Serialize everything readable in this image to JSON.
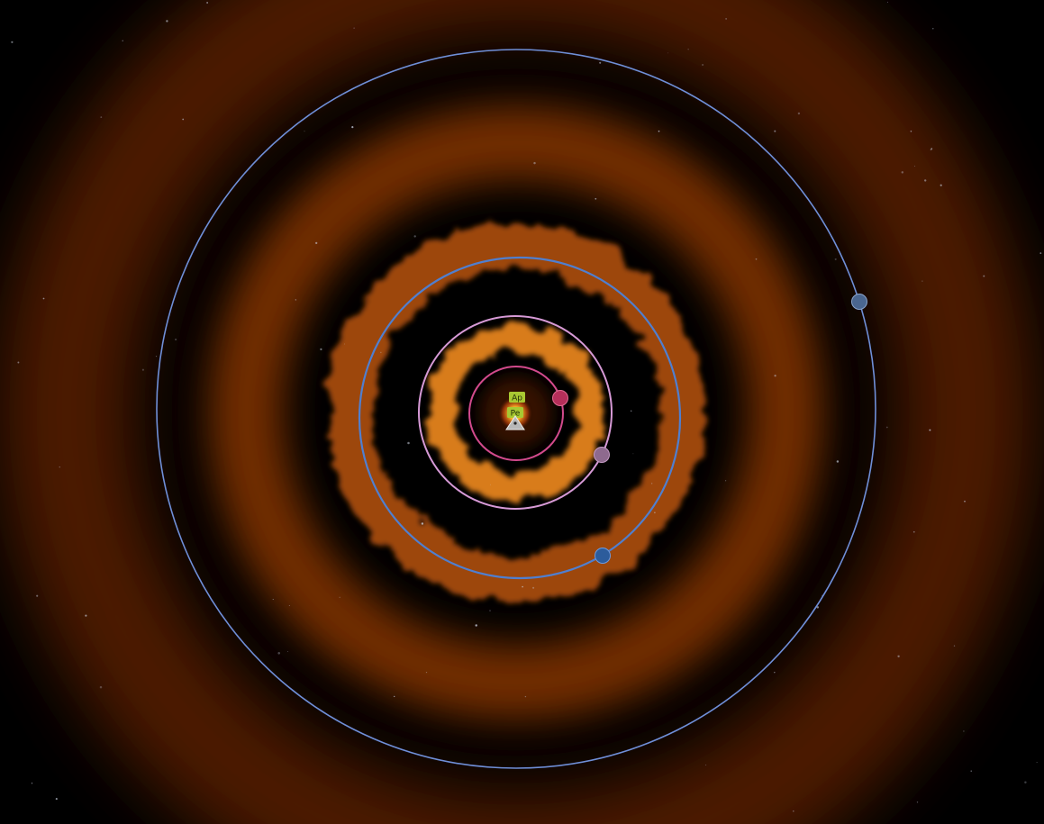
{
  "map": {
    "background_color": "#000000",
    "nebula_color": "#ff6a00",
    "star_color": "#ffd34a"
  },
  "orbits": [
    {
      "id": "orbit-inner-pink",
      "color": "#d24a8c"
    },
    {
      "id": "orbit-lilac",
      "color": "#d79ad6"
    },
    {
      "id": "orbit-blue",
      "color": "#4f7fd0"
    },
    {
      "id": "orbit-outer-blue",
      "color": "#6f8fd8"
    }
  ],
  "bodies": [
    {
      "id": "planet-crimson",
      "color": "#b52f5a"
    },
    {
      "id": "planet-mauve",
      "color": "#8e6a8e"
    },
    {
      "id": "planet-blue",
      "color": "#2c5c9c"
    },
    {
      "id": "planet-slate",
      "color": "#4a6690"
    }
  ],
  "markers": {
    "apoapsis": {
      "label": "Ap",
      "color": "#a8c832"
    },
    "periapsis": {
      "label": "Pe",
      "color": "#a8c832"
    }
  },
  "vessel": {
    "icon": "vessel-triangle-icon",
    "color": "#b8b8b8"
  }
}
